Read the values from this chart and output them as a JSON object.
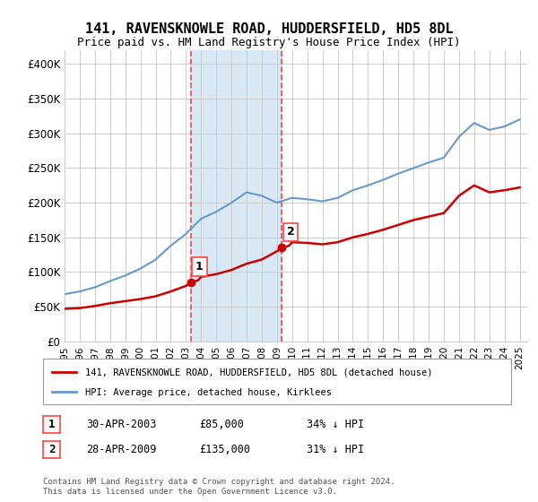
{
  "title": "141, RAVENSKNOWLE ROAD, HUDDERSFIELD, HD5 8DL",
  "subtitle": "Price paid vs. HM Land Registry's House Price Index (HPI)",
  "ylabel_ticks": [
    "£0",
    "£50K",
    "£100K",
    "£150K",
    "£200K",
    "£250K",
    "£300K",
    "£350K",
    "£400K"
  ],
  "ytick_values": [
    0,
    50000,
    100000,
    150000,
    200000,
    250000,
    300000,
    350000,
    400000
  ],
  "ylim": [
    0,
    420000
  ],
  "xlim_start": 1995.0,
  "xlim_end": 2025.5,
  "sale1_x": 2003.33,
  "sale1_y": 85000,
  "sale1_label": "1",
  "sale1_date": "30-APR-2003",
  "sale1_price": "£85,000",
  "sale1_hpi": "34% ↓ HPI",
  "sale2_x": 2009.33,
  "sale2_y": 135000,
  "sale2_label": "2",
  "sale2_date": "28-APR-2009",
  "sale2_price": "£135,000",
  "sale2_hpi": "31% ↓ HPI",
  "shade_color": "#d9e8f5",
  "vline_color": "#ff4444",
  "red_line_color": "#cc0000",
  "blue_line_color": "#6699cc",
  "legend_line1": "141, RAVENSKNOWLE ROAD, HUDDERSFIELD, HD5 8DL (detached house)",
  "legend_line2": "HPI: Average price, detached house, Kirklees",
  "footer": "Contains HM Land Registry data © Crown copyright and database right 2024.\nThis data is licensed under the Open Government Licence v3.0.",
  "background_color": "#ffffff",
  "plot_bg_color": "#ffffff",
  "grid_color": "#cccccc"
}
